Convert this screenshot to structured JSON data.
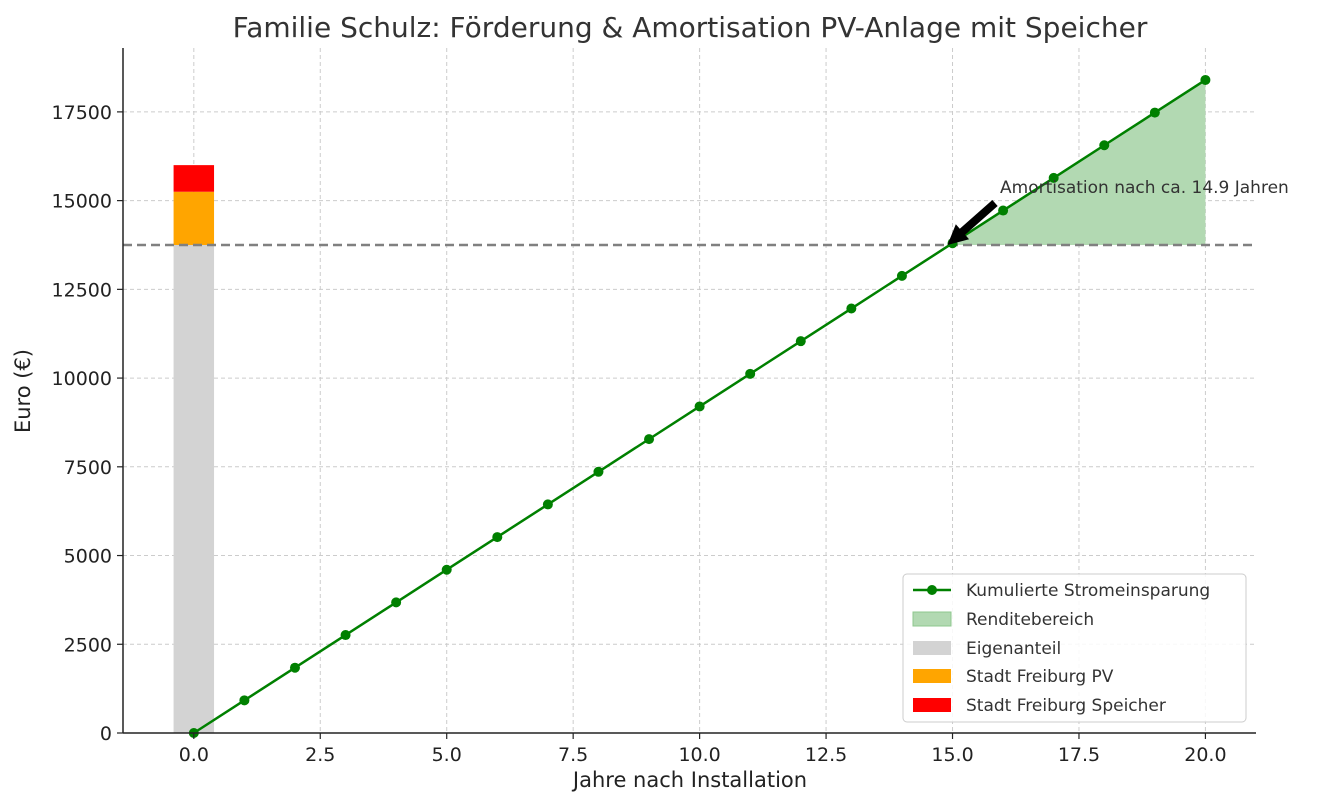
{
  "chart_data": {
    "type": "line",
    "title": "Familie Schulz: Förderung & Amortisation PV-Anlage mit Speicher",
    "xlabel": "Jahre nach Installation",
    "ylabel": "Euro (€)",
    "xlim": [
      -1.4,
      21.0
    ],
    "ylim": [
      0,
      19300
    ],
    "xticks": [
      0.0,
      2.5,
      5.0,
      7.5,
      10.0,
      12.5,
      15.0,
      17.5,
      20.0
    ],
    "xtick_labels": [
      "0.0",
      "2.5",
      "5.0",
      "7.5",
      "10.0",
      "12.5",
      "15.0",
      "17.5",
      "20.0"
    ],
    "yticks": [
      0,
      2500,
      5000,
      7500,
      10000,
      12500,
      15000,
      17500
    ],
    "ytick_labels": [
      "0",
      "2500",
      "5000",
      "7500",
      "10000",
      "12500",
      "15000",
      "17500"
    ],
    "grid": true,
    "legend_position": "lower-right",
    "series": [
      {
        "name": "Kumulierte Stromeinsparung",
        "color": "#008000",
        "x": [
          0,
          1,
          2,
          3,
          4,
          5,
          6,
          7,
          8,
          9,
          10,
          11,
          12,
          13,
          14,
          15,
          16,
          17,
          18,
          19,
          20
        ],
        "values": [
          0,
          920,
          1840,
          2760,
          3680,
          4600,
          5520,
          6440,
          7360,
          8280,
          9200,
          10120,
          11040,
          11960,
          12880,
          13800,
          14720,
          15640,
          16560,
          17480,
          18400
        ]
      }
    ],
    "area": {
      "name": "Renditebereich",
      "color": "#b2d9b2",
      "x_start": 14.9,
      "x_end": 20,
      "baseline": 13750
    },
    "stacked_bar": {
      "x": 0,
      "width": 0.8,
      "segments": [
        {
          "name": "Eigenanteil",
          "value": 13750,
          "color": "#d3d3d3"
        },
        {
          "name": "Stadt Freiburg PV",
          "value": 1500,
          "color": "#ffa500"
        },
        {
          "name": "Stadt Freiburg Speicher",
          "value": 750,
          "color": "#ff0000"
        }
      ]
    },
    "reference_line": {
      "y": 13750,
      "color": "#808080"
    },
    "annotation": {
      "text": "Amortisation nach ca. 14.9 Jahren",
      "x": 14.9,
      "y": 13750
    }
  }
}
